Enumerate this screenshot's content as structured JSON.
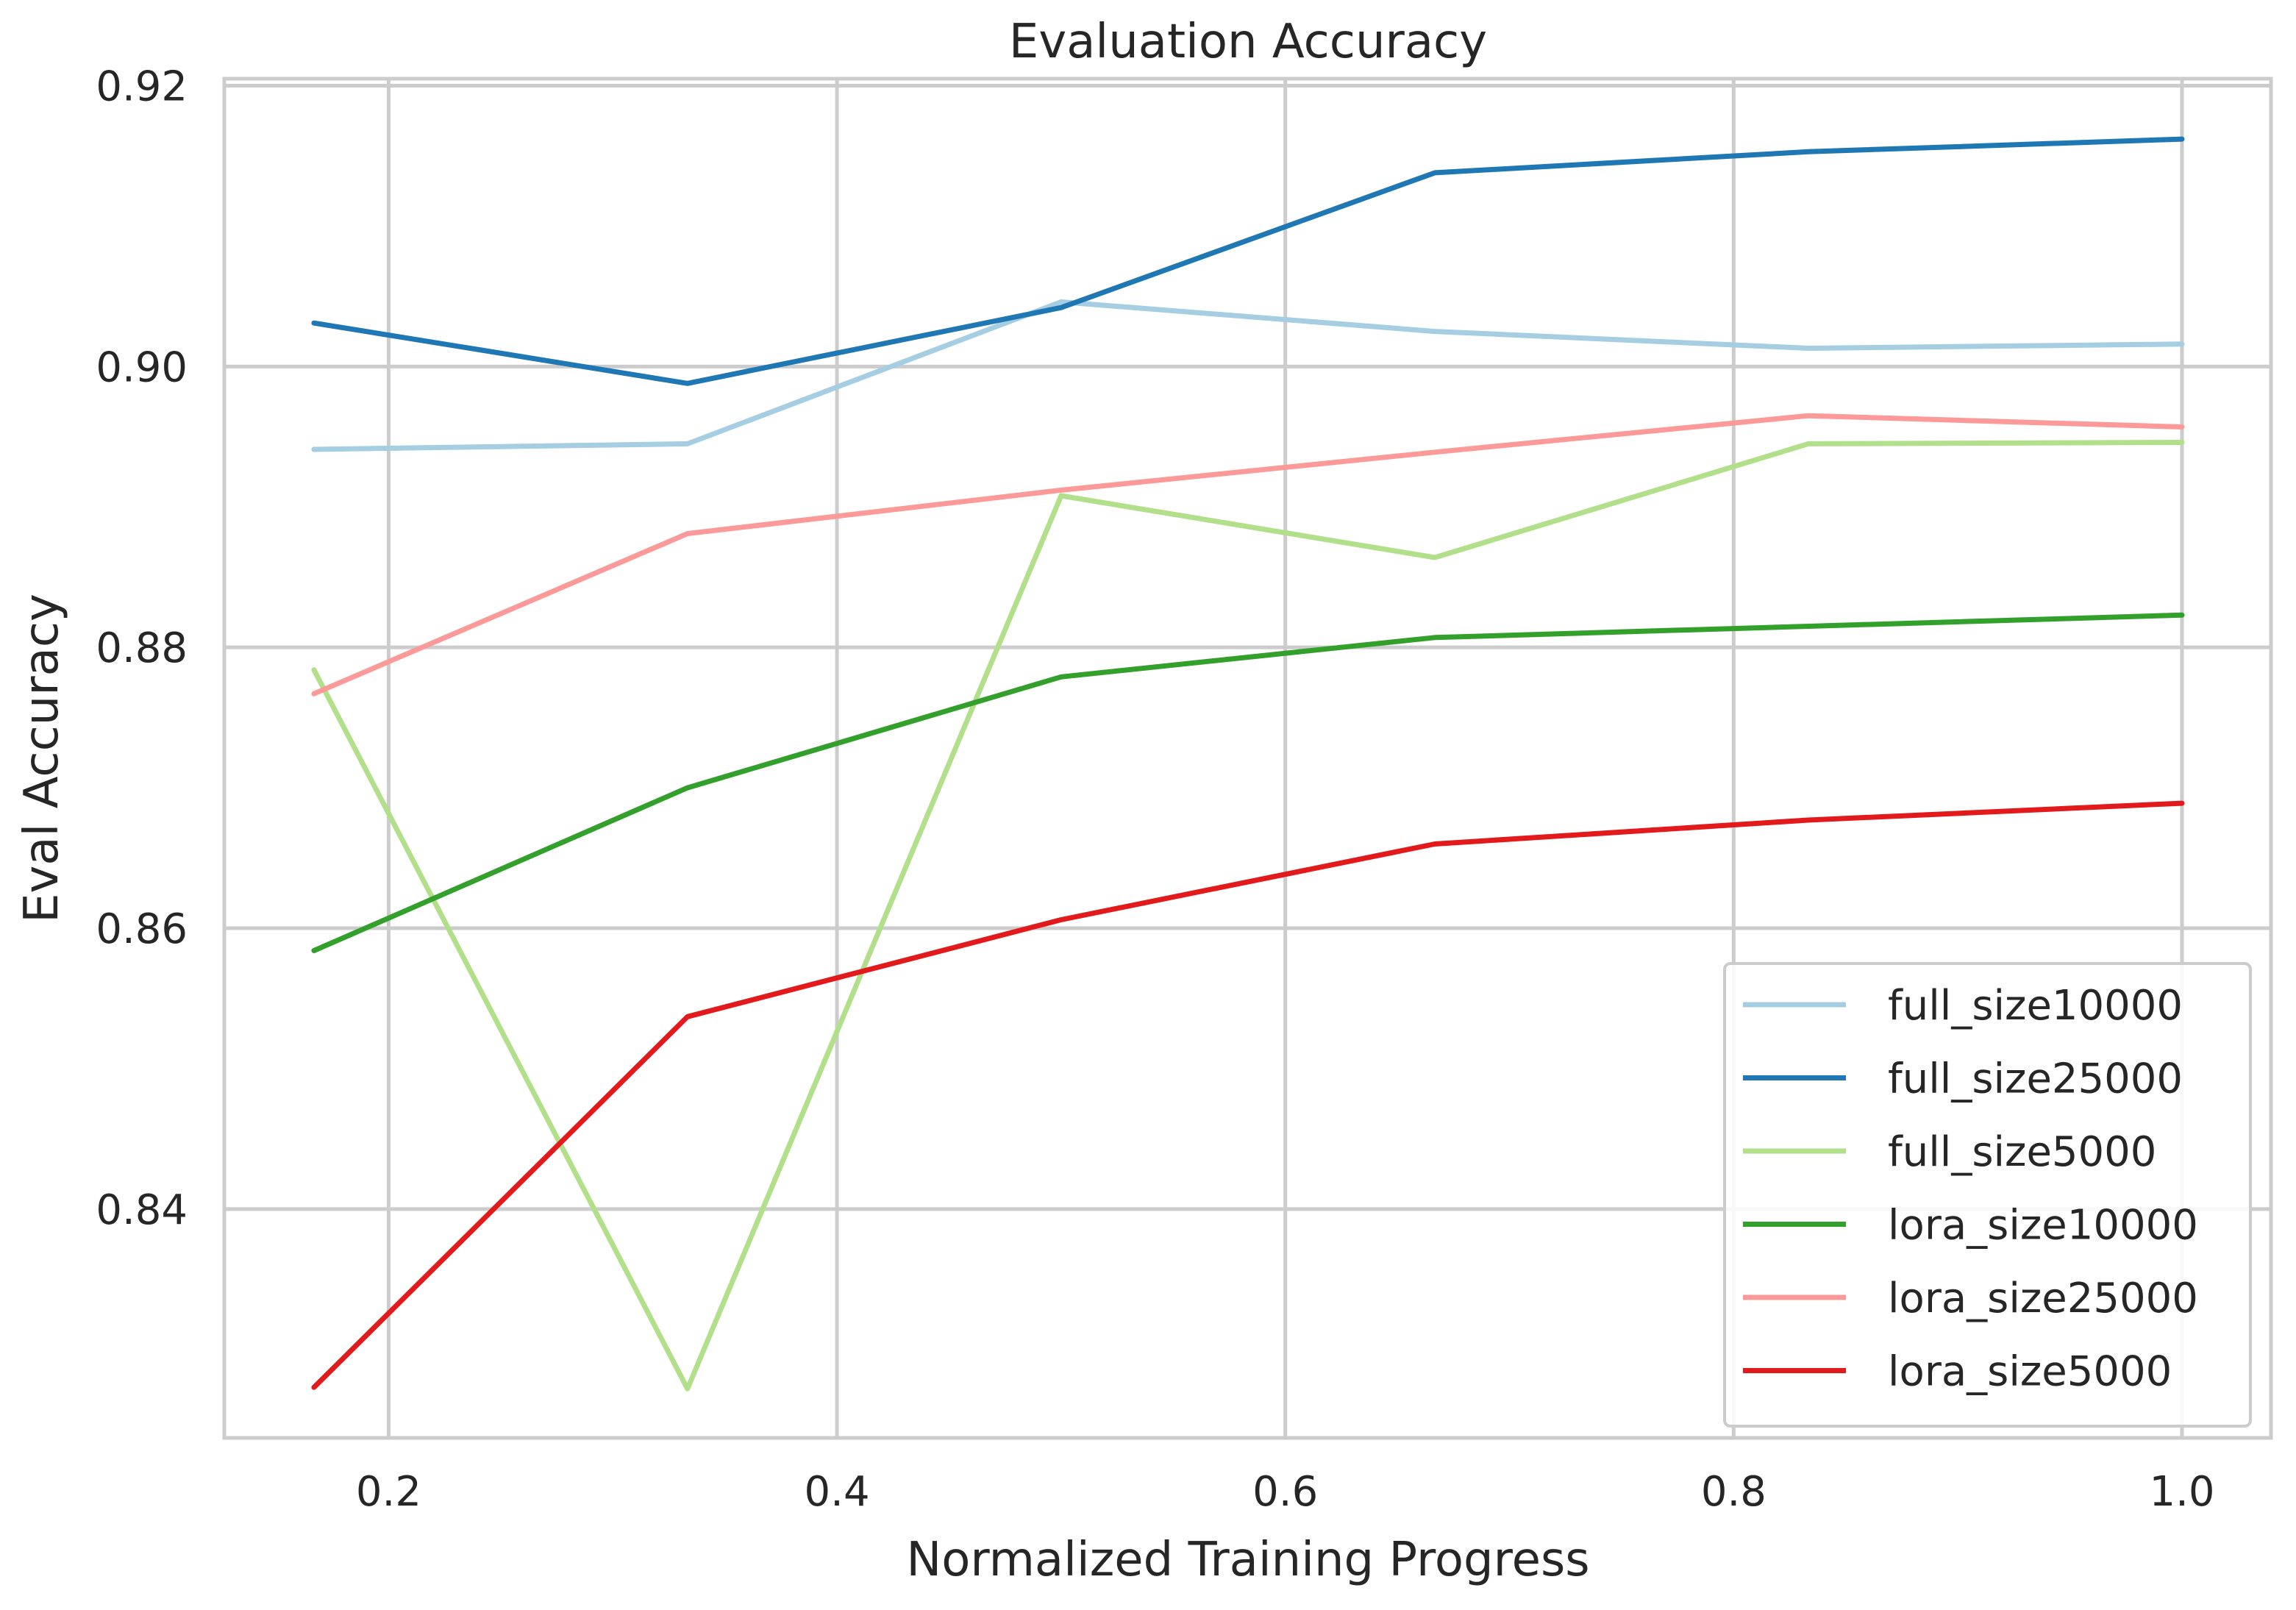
{
  "chart_data": {
    "type": "line",
    "title": "Evaluation Accuracy",
    "xlabel": "Normalized Training Progress",
    "ylabel": "Eval Accuracy",
    "xlim": [
      0.1267,
      1.0397
    ],
    "ylim": [
      0.8237,
      0.9205
    ],
    "xticks": [
      0.2,
      0.4,
      0.6,
      0.8,
      1.0
    ],
    "xtick_labels": [
      "0.2",
      "0.4",
      "0.6",
      "0.8",
      "1.0"
    ],
    "yticks": [
      0.84,
      0.86,
      0.88,
      0.9,
      0.92
    ],
    "ytick_labels": [
      "0.84",
      "0.86",
      "0.88",
      "0.90",
      "0.92"
    ],
    "grid": true,
    "legend_position": "lower-right",
    "x": [
      0.1667,
      0.3333,
      0.5,
      0.6667,
      0.8333,
      1.0
    ],
    "series": [
      {
        "name": "full_size10000",
        "color": "#a6cee3",
        "values": [
          0.8941,
          0.8945,
          0.9046,
          0.9025,
          0.9013,
          0.9016
        ]
      },
      {
        "name": "full_size25000",
        "color": "#1f78b4",
        "values": [
          0.9031,
          0.8988,
          0.9042,
          0.9138,
          0.9153,
          0.9162
        ]
      },
      {
        "name": "full_size5000",
        "color": "#b2df8a",
        "values": [
          0.8784,
          0.8272,
          0.8908,
          0.8864,
          0.8945,
          0.8946
        ]
      },
      {
        "name": "lora_size10000",
        "color": "#33a02c",
        "values": [
          0.8584,
          0.87,
          0.8779,
          0.8807,
          0.8815,
          0.8823
        ]
      },
      {
        "name": "lora_size25000",
        "color": "#fb9a99",
        "values": [
          0.8767,
          0.8881,
          0.8912,
          0.8939,
          0.8965,
          0.8957
        ]
      },
      {
        "name": "lora_size5000",
        "color": "#e31a1c",
        "values": [
          0.8273,
          0.8537,
          0.8606,
          0.866,
          0.8677,
          0.8689
        ]
      }
    ]
  }
}
